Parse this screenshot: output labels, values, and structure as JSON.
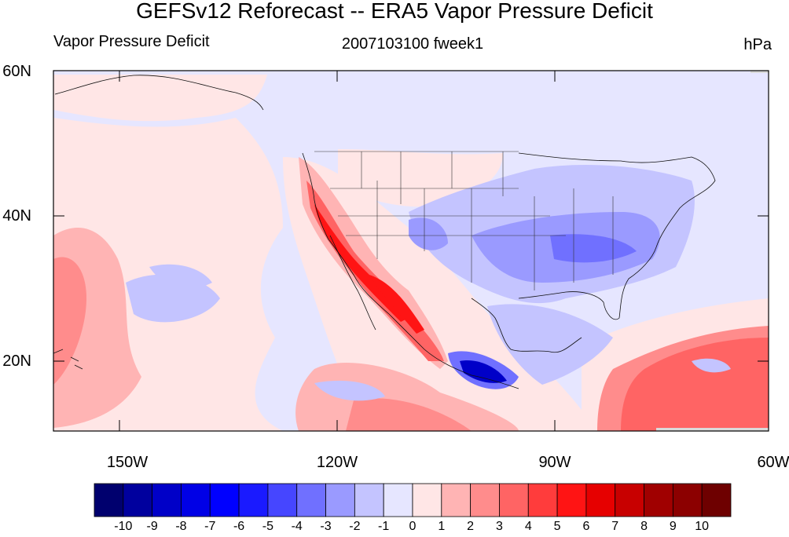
{
  "title": "GEFSv12 Reforecast -- ERA5 Vapor Pressure Deficit",
  "left_subtitle": "Vapor Pressure Deficit",
  "center_subtitle": "2007103100 fweek1",
  "right_subtitle": "hPa",
  "lat_labels": [
    "60N",
    "40N",
    "20N"
  ],
  "lon_labels": [
    "150W",
    "120W",
    "90W",
    "60W"
  ],
  "colorbar": {
    "labels": [
      "-10",
      "-9",
      "-8",
      "-7",
      "-6",
      "-5",
      "-4",
      "-3",
      "-2",
      "-1",
      "0",
      "1",
      "2",
      "3",
      "4",
      "5",
      "6",
      "7",
      "8",
      "9",
      "10"
    ],
    "colors": [
      "#00006e",
      "#00009e",
      "#0000c8",
      "#0000e6",
      "#0000ff",
      "#1a1aff",
      "#4646ff",
      "#7070ff",
      "#9a9aff",
      "#c4c4ff",
      "#e6e6ff",
      "#ffe6e6",
      "#ffb4b4",
      "#ff8c8c",
      "#ff6464",
      "#ff3c3c",
      "#ff1414",
      "#e60000",
      "#c80000",
      "#a00000",
      "#8c0000",
      "#6e0000"
    ]
  },
  "map_colors": {
    "ocean_neutral": "#e6e6ff",
    "pos1": "#ffe6e6",
    "pos2": "#ffb4b4",
    "pos3": "#ff8c8c",
    "pos4": "#ff6464",
    "pos5": "#ff3c3c",
    "pos6": "#ff1414",
    "neg2": "#c4c4ff",
    "neg3": "#9a9aff",
    "neg4": "#7070ff",
    "neg6": "#1a1aff",
    "neg9": "#0000c8",
    "missing": "#d9d9d9"
  }
}
